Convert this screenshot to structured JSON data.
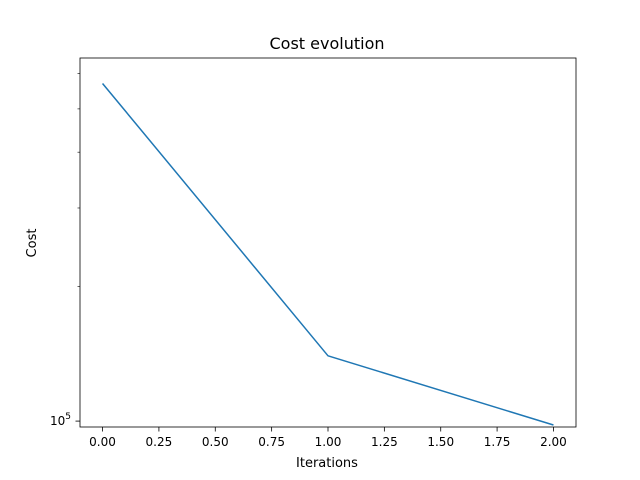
{
  "chart_data": {
    "type": "line",
    "title": "Cost evolution",
    "xlabel": "Iterations",
    "ylabel": "Cost",
    "yscale": "log",
    "xlim": [
      -0.1,
      2.1
    ],
    "ylim": [
      97000,
      650000
    ],
    "x_ticks": [
      0.0,
      0.25,
      0.5,
      0.75,
      1.0,
      1.25,
      1.5,
      1.75,
      2.0
    ],
    "x_tick_labels": [
      "0.00",
      "0.25",
      "0.50",
      "0.75",
      "1.00",
      "1.25",
      "1.50",
      "1.75",
      "2.00"
    ],
    "y_major_ticks": [
      100000
    ],
    "y_tick_label": {
      "base": "10",
      "exponent": "5"
    },
    "grid": false,
    "series": [
      {
        "color": "#1f77b4",
        "x": [
          0,
          1,
          2
        ],
        "y": [
          570000,
          140000,
          98000
        ]
      }
    ]
  }
}
